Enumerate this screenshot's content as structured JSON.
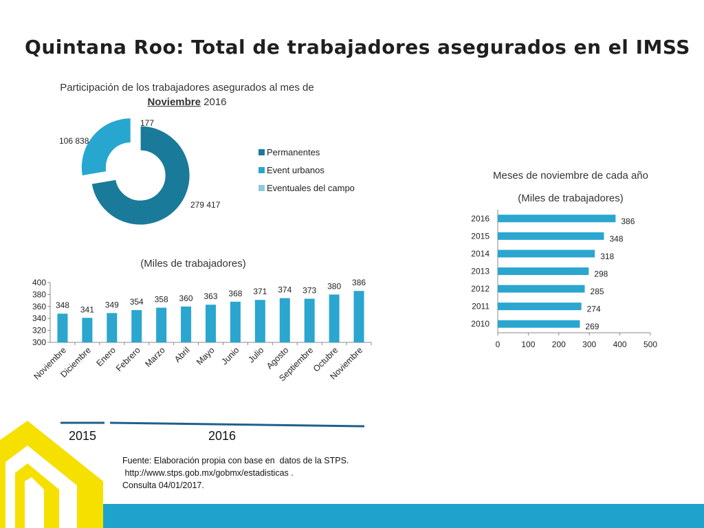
{
  "page": {
    "title": "Quintana Roo: Total de trabajadores asegurados en el IMSS",
    "year_labels": [
      "2015",
      "2016"
    ],
    "source": {
      "line1": "Fuente: Elaboración propia con base en  datos de la STPS.",
      "line2": " http://www.stps.gob.mx/gobmx/estadisticas .",
      "line3": "Consulta 04/01/2017."
    },
    "colors": {
      "accent_blue": "#1fa3cc",
      "logo_yellow": "#f6e000",
      "underline_blue": "#1f5f8b"
    },
    "icons": [
      "logo-mark"
    ]
  },
  "chart_data": [
    {
      "type": "pie",
      "title_prefix": "Participación  de los trabajadores asegurados al mes de",
      "title_month": "Noviembre",
      "title_year": "2016",
      "slices": [
        {
          "name": "Permanentes",
          "value": 279417,
          "label": "279 417",
          "color": "#1a7a99"
        },
        {
          "name": "Event urbanos",
          "value": 106838,
          "label": "106 838",
          "color": "#27a7cf"
        },
        {
          "name": "Eventuales del campo",
          "value": 177,
          "label": "177",
          "color": "#8fc9de"
        }
      ],
      "legend": "right"
    },
    {
      "type": "bar",
      "title": "(Miles de trabajadores)",
      "categories": [
        "Noviembre",
        "Diciembre",
        "Enero",
        "Febrero",
        "Marzo",
        "Abril",
        "Mayo",
        "Junio",
        "Julio",
        "Agosto",
        "Septiembre",
        "Octubre",
        "Noviembre"
      ],
      "values": [
        348,
        341,
        349,
        354,
        358,
        360,
        363,
        368,
        371,
        374,
        373,
        380,
        386
      ],
      "ylim": [
        300,
        400
      ],
      "yticks": [
        300,
        320,
        340,
        360,
        380,
        400
      ],
      "color": "#2aa6cf",
      "grid": false
    },
    {
      "type": "bar",
      "orientation": "horizontal",
      "title": "Meses de noviembre de cada año",
      "subtitle": "(Miles de trabajadores)",
      "categories": [
        "2016",
        "2015",
        "2014",
        "2013",
        "2012",
        "2011",
        "2010"
      ],
      "values": [
        386,
        348,
        318,
        298,
        285,
        274,
        269
      ],
      "xlim": [
        0,
        500
      ],
      "xticks": [
        0,
        100,
        200,
        300,
        400,
        500
      ],
      "color": "#2aa6cf",
      "grid": false
    }
  ]
}
